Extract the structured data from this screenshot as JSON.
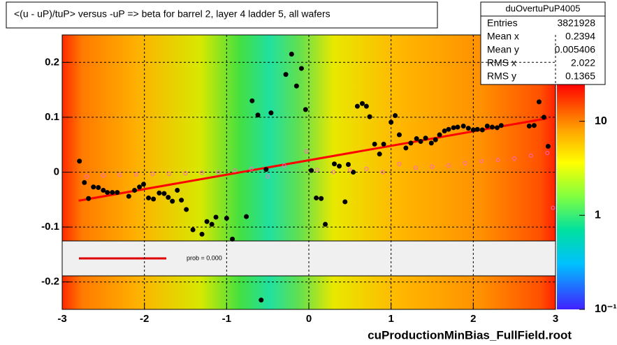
{
  "chart_data": {
    "type": "scatter",
    "title": "<(u - uP)/tuP> versus  -uP => beta for barrel 2, layer 4 ladder 5, all wafers",
    "file_label": "cuProductionMinBias_FullField.root",
    "xlim": [
      -3,
      3
    ],
    "ylim": [
      -0.25,
      0.25
    ],
    "xticks": [
      -3,
      -2,
      -1,
      0,
      1,
      2,
      3
    ],
    "yticks": [
      -0.2,
      -0.1,
      0,
      0.1,
      0.2
    ],
    "grid": true,
    "series": [
      {
        "color": "#000000",
        "x": [
          -2.79,
          -2.73,
          -2.68,
          -2.62,
          -2.56,
          -2.5,
          -2.45,
          -2.39,
          -2.33,
          -2.19,
          -2.12,
          -2.06,
          -2.01,
          -1.95,
          -1.89,
          -1.82,
          -1.76,
          -1.71,
          -1.66,
          -1.6,
          -1.55,
          -1.49,
          -1.41,
          -1.3,
          -1.24,
          -1.18,
          -1.13,
          -1.0,
          -0.93,
          -0.76,
          -0.69,
          -0.62,
          -0.58,
          -0.52,
          -0.46,
          -0.28,
          -0.21,
          -0.15,
          -0.09,
          -0.04,
          0.03,
          0.09,
          0.15,
          0.2,
          0.31,
          0.37,
          0.44,
          0.48,
          0.54,
          0.59,
          0.65,
          0.7,
          0.74,
          0.8,
          0.86,
          0.91,
          1.0,
          1.05,
          1.1,
          1.18,
          1.24,
          1.31,
          1.36,
          1.42,
          1.49,
          1.54,
          1.59,
          1.65,
          1.7,
          1.76,
          1.81,
          1.88,
          1.94,
          2.0,
          2.05,
          2.11,
          2.17,
          2.23,
          2.29,
          2.34,
          2.68,
          2.74,
          2.8,
          2.86,
          2.91
        ],
        "values": [
          0.02,
          -0.019,
          -0.048,
          -0.027,
          -0.028,
          -0.033,
          -0.037,
          -0.037,
          -0.037,
          -0.044,
          -0.033,
          -0.027,
          -0.022,
          -0.047,
          -0.049,
          -0.038,
          -0.039,
          -0.046,
          -0.053,
          -0.033,
          -0.051,
          -0.068,
          -0.105,
          -0.113,
          -0.09,
          -0.095,
          -0.082,
          -0.084,
          -0.122,
          -0.081,
          0.13,
          0.104,
          -0.233,
          0.005,
          0.108,
          0.178,
          0.215,
          0.157,
          0.189,
          0.114,
          0.003,
          -0.047,
          -0.048,
          -0.095,
          0.015,
          0.011,
          -0.054,
          0.014,
          0.0,
          0.12,
          0.125,
          0.12,
          0.101,
          0.051,
          0.033,
          0.051,
          0.091,
          0.103,
          0.068,
          0.044,
          0.053,
          0.061,
          0.056,
          0.062,
          0.053,
          0.059,
          0.068,
          0.075,
          0.078,
          0.081,
          0.082,
          0.084,
          0.08,
          0.077,
          0.078,
          0.077,
          0.084,
          0.082,
          0.081,
          0.085,
          0.084,
          0.085,
          0.128,
          0.1,
          0.047
        ]
      },
      {
        "color": "#ff66cc",
        "hollow": true,
        "x": [
          -2.7,
          -2.5,
          -2.3,
          -2.1,
          -1.9,
          -1.7,
          -1.5,
          -1.3,
          -1.1,
          -0.9,
          -0.7,
          -0.5,
          -0.3,
          -0.03,
          0.1,
          0.3,
          0.5,
          0.7,
          0.9,
          1.1,
          1.3,
          1.5,
          1.7,
          1.9,
          2.1,
          2.3,
          2.5,
          2.7,
          2.9,
          2.97
        ],
        "values": [
          -0.008,
          -0.006,
          -0.005,
          -0.004,
          -0.003,
          -0.003,
          -0.002,
          -0.001,
          0.0,
          0.003,
          0.006,
          -0.008,
          0.012,
          0.038,
          0.004,
          0.0,
          0.004,
          0.006,
          0.0,
          0.015,
          0.008,
          0.01,
          0.012,
          0.016,
          0.02,
          0.022,
          0.025,
          0.03,
          0.035,
          -0.065
        ]
      }
    ],
    "fit": {
      "color": "#ff0000",
      "x": [
        -2.8,
        2.9
      ],
      "values": [
        -0.052,
        0.098
      ]
    },
    "legend_text": "prob = 0.000",
    "stats": {
      "title": "duOvertuPuP4005",
      "rows": [
        [
          "Entries",
          "3821928"
        ],
        [
          "Mean x",
          "0.2394"
        ],
        [
          "Mean y",
          "0.005406"
        ],
        [
          "RMS x",
          "2.022"
        ],
        [
          "RMS y",
          "0.1365"
        ]
      ]
    },
    "zlog": true,
    "zlim": [
      0.1,
      25
    ],
    "zticks": [
      {
        "value": 10,
        "label": "10"
      },
      {
        "value": 1,
        "label": "1"
      },
      {
        "value": 0.1,
        "label": "10⁻¹"
      }
    ]
  }
}
